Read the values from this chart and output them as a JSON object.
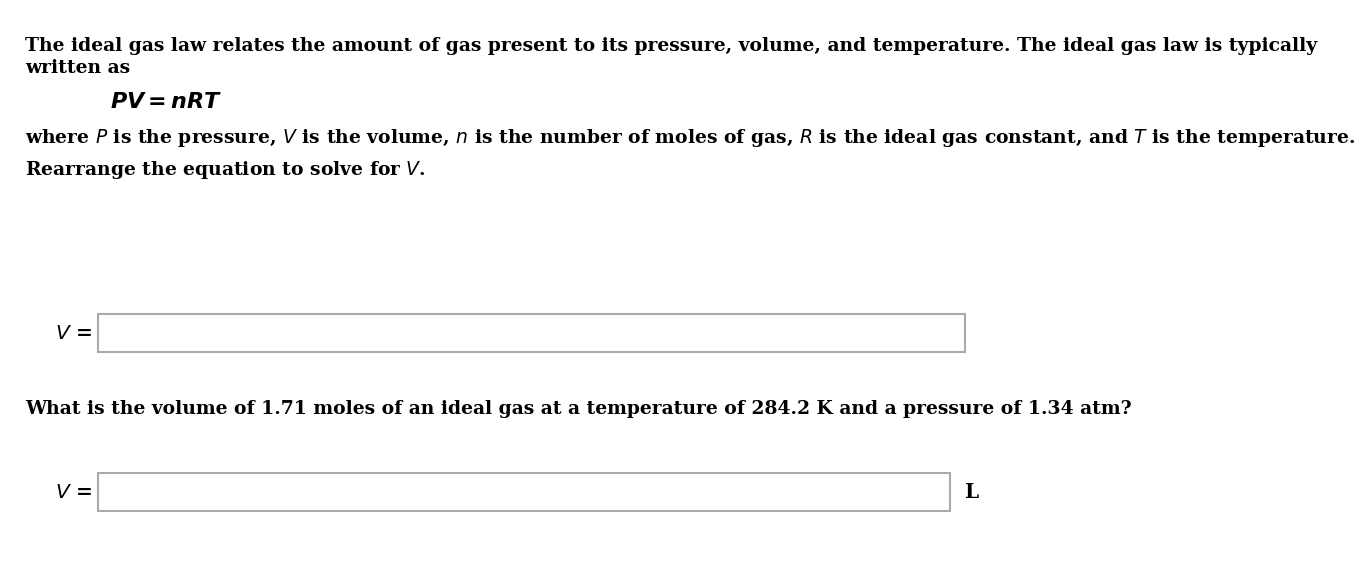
{
  "background_color": "#ffffff",
  "text_color": "#000000",
  "para1_line1": "The ideal gas law relates the amount of gas present to its pressure, volume, and temperature. The ideal gas law is typically",
  "para1_line2": "written as",
  "equation": "$\\boldsymbol{PV = n RT}$",
  "para2": "where $\\mathit{P}$ is the pressure, $\\mathit{V}$ is the volume, $\\mathit{n}$ is the number of moles of gas, $\\mathit{R}$ is the ideal gas constant, and $\\mathit{T}$ is the temperature.",
  "para3": "Rearrange the equation to solve for $\\mathit{V}$.",
  "label1": "$\\mathit{V}$ =",
  "para4": "What is the volume of 1.71 moles of an ideal gas at a temperature of 284.2 K and a pressure of 1.34 atm?",
  "label2": "$\\mathit{V}$ =",
  "unit_label": "L",
  "box_edge_color": "#aaaaaa",
  "fontsize_body": 13.5,
  "fontsize_eq": 16
}
